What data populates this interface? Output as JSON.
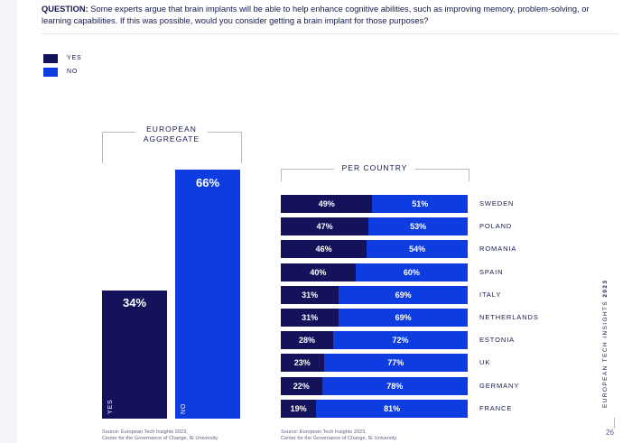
{
  "question": {
    "label": "QUESTION:",
    "text": "Some experts argue that brain implants will be able to help enhance cognitive abilities, such as improving memory, problem-solving, or learning capabilities. If this was possible, would you consider getting a brain implant for those purposes?"
  },
  "legend": {
    "yes": "YES",
    "no": "NO"
  },
  "colors": {
    "yes": "#13125a",
    "no": "#0d3de0",
    "text": "#141b4d",
    "bracket": "#b7bccb"
  },
  "aggregate": {
    "title_line1": "EUROPEAN",
    "title_line2": "AGGREGATE",
    "yes_label": "YES",
    "no_label": "NO",
    "yes_pct": "34%",
    "no_pct": "66%"
  },
  "per_country_title": "PER COUNTRY",
  "chart_data": [
    {
      "type": "bar",
      "title": "EUROPEAN AGGREGATE",
      "categories": [
        "YES",
        "NO"
      ],
      "values": [
        34,
        66
      ],
      "ylim": [
        0,
        100
      ]
    },
    {
      "type": "bar",
      "orientation": "horizontal",
      "stacked": true,
      "title": "PER COUNTRY",
      "categories": [
        "SWEDEN",
        "POLAND",
        "ROMANIA",
        "SPAIN",
        "ITALY",
        "NETHERLANDS",
        "ESTONIA",
        "UK",
        "GERMANY",
        "FRANCE"
      ],
      "series": [
        {
          "name": "YES",
          "values": [
            49,
            47,
            46,
            40,
            31,
            31,
            28,
            23,
            22,
            19
          ]
        },
        {
          "name": "NO",
          "values": [
            51,
            53,
            54,
            60,
            69,
            69,
            72,
            77,
            78,
            81
          ]
        }
      ],
      "xlim": [
        0,
        100
      ]
    }
  ],
  "sources": {
    "left_line1": "Source: European Tech Insights 2023,",
    "left_line2": "Center for the Governance of Change, IE University.",
    "right_line1": "Source: European Tech Insights 2023,",
    "right_line2": "Center for the Governance of Change, IE University."
  },
  "sidebar": {
    "title": "EUROPEAN TECH INSIGHTS ",
    "year": "2023"
  },
  "page_number": "26"
}
